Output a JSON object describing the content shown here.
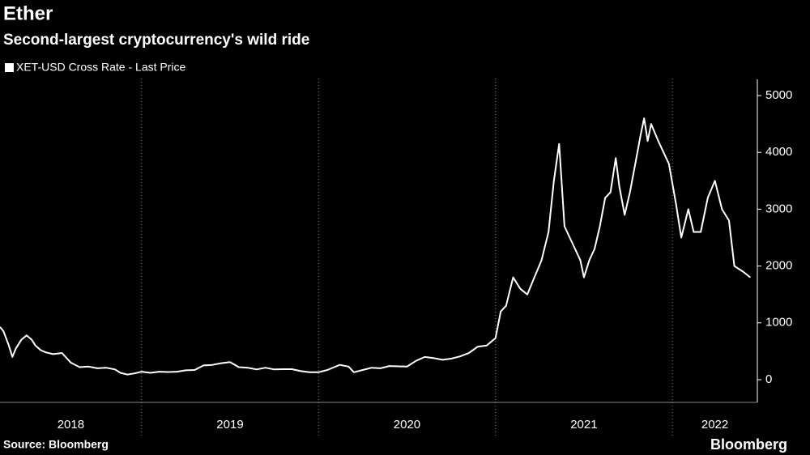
{
  "chart_data": {
    "type": "line",
    "title": "Ether",
    "subtitle": "Second-largest cryptocurrency's wild ride",
    "source": "Source: Bloomberg",
    "brand": "Bloomberg",
    "x": [
      2018.2,
      2018.22,
      2018.25,
      2018.27,
      2018.29,
      2018.32,
      2018.35,
      2018.38,
      2018.4,
      2018.43,
      2018.46,
      2018.5,
      2018.55,
      2018.6,
      2018.65,
      2018.7,
      2018.75,
      2018.8,
      2018.85,
      2018.88,
      2018.92,
      2018.96,
      2019.0,
      2019.05,
      2019.1,
      2019.15,
      2019.2,
      2019.25,
      2019.3,
      2019.35,
      2019.4,
      2019.45,
      2019.5,
      2019.55,
      2019.6,
      2019.65,
      2019.7,
      2019.75,
      2019.8,
      2019.85,
      2019.9,
      2019.95,
      2020.0,
      2020.05,
      2020.12,
      2020.17,
      2020.2,
      2020.25,
      2020.3,
      2020.35,
      2020.4,
      2020.45,
      2020.5,
      2020.55,
      2020.6,
      2020.65,
      2020.7,
      2020.75,
      2020.8,
      2020.85,
      2020.9,
      2020.95,
      2021.0,
      2021.03,
      2021.06,
      2021.1,
      2021.14,
      2021.18,
      2021.22,
      2021.26,
      2021.3,
      2021.33,
      2021.36,
      2021.39,
      2021.42,
      2021.45,
      2021.48,
      2021.5,
      2021.53,
      2021.56,
      2021.59,
      2021.62,
      2021.65,
      2021.68,
      2021.7,
      2021.73,
      2021.76,
      2021.79,
      2021.82,
      2021.84,
      2021.86,
      2021.88,
      2021.92,
      2021.95,
      2021.98,
      2022.02,
      2022.05,
      2022.09,
      2022.12,
      2022.16,
      2022.2,
      2022.24,
      2022.28,
      2022.32,
      2022.35,
      2022.4,
      2022.44
    ],
    "series": [
      {
        "name": "XET-USD Cross Rate - Last Price",
        "color": "#ffffff",
        "values": [
          930,
          850,
          600,
          400,
          550,
          700,
          780,
          700,
          600,
          520,
          480,
          450,
          470,
          300,
          220,
          230,
          200,
          210,
          180,
          120,
          90,
          110,
          140,
          120,
          140,
          135,
          140,
          165,
          170,
          250,
          260,
          290,
          310,
          220,
          210,
          180,
          210,
          180,
          185,
          185,
          150,
          130,
          130,
          170,
          260,
          230,
          130,
          170,
          210,
          200,
          240,
          235,
          230,
          330,
          400,
          380,
          350,
          370,
          410,
          470,
          580,
          600,
          730,
          1200,
          1300,
          1800,
          1600,
          1500,
          1800,
          2100,
          2600,
          3500,
          4150,
          2700,
          2500,
          2300,
          2100,
          1800,
          2100,
          2300,
          2700,
          3200,
          3300,
          3900,
          3400,
          2900,
          3300,
          3800,
          4300,
          4600,
          4200,
          4500,
          4200,
          4000,
          3800,
          3100,
          2500,
          3000,
          2600,
          2600,
          3200,
          3500,
          3000,
          2800,
          2000,
          1900,
          1800
        ]
      }
    ],
    "xlim": [
      2018.2,
      2022.48
    ],
    "xticks": [
      2018,
      2019,
      2020,
      2021,
      2022
    ],
    "ylim": [
      -300,
      5300
    ],
    "yticks": [
      0,
      1000,
      2000,
      3000,
      4000,
      5000
    ]
  }
}
